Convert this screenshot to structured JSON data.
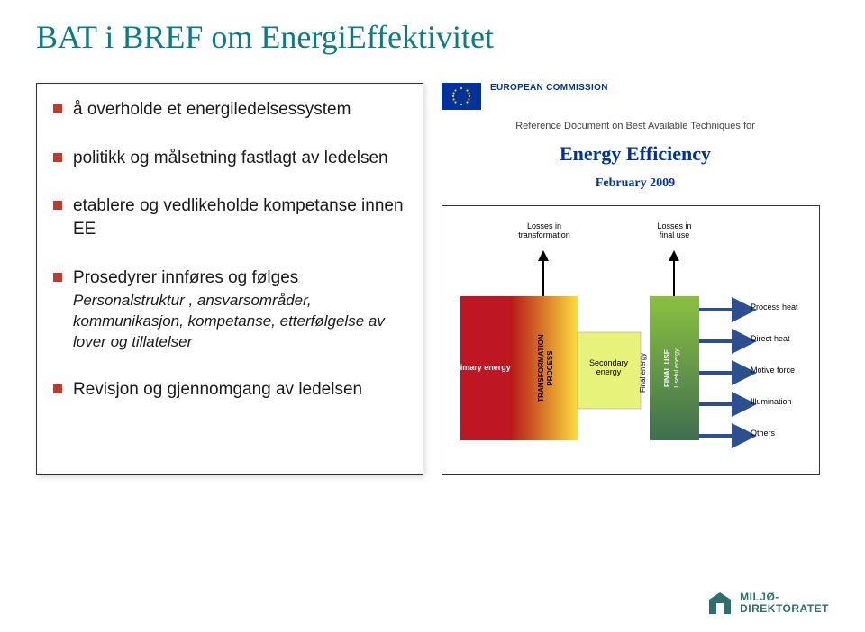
{
  "title": {
    "text": "BAT i BREF om EnergiEffektivitet",
    "color": "#0b7b85"
  },
  "bullets": {
    "markerColor": "#c0392b",
    "textColor": "#1a1a1a",
    "items": [
      {
        "text": "å overholde et energiledelsessystem"
      },
      {
        "text": "politikk og målsetning fastlagt av ledelsen"
      },
      {
        "text": "etablere og vedlikeholde kompetanse innen EE"
      },
      {
        "text": "Prosedyrer innføres og følges"
      },
      {
        "text": "Revisjon og gjennomgang av ledelsen"
      }
    ],
    "subtext": "Personalstruktur , ansvarsområder, kommunikasjon, kompetanse, etterfølgelse av lover og tillatelser"
  },
  "document": {
    "commissionLabel": "EUROPEAN COMMISSION",
    "refLine": "Reference Document on Best Available Techniques for",
    "mainTitle": "Energy Efficiency",
    "mainTitleColor": "#003399",
    "date": "February 2009",
    "dateColor": "#003399"
  },
  "diagram": {
    "labels": {
      "lossesTransformation": "Losses in\ntransformation",
      "lossesFinalUse": "Losses in\nfinal use",
      "primaryEnergy": "Primary energy",
      "transformationProcess": "TRANSFORMATION\nPROCESS",
      "secondaryEnergy": "Secondary\nenergy",
      "finalUse": "FINAL USE\nUseful energy",
      "finalEnergy": "Final energy",
      "outputs": [
        "Process heat",
        "Direct heat",
        "Motive force",
        "Illumination",
        "Others"
      ]
    },
    "colors": {
      "primaryEnergyBox": "#be1622",
      "transformationGradient": [
        "#b51717",
        "#fcdc3b"
      ],
      "secondaryEnergyBox": "#e6f27a",
      "finalUseTop": "#8ac13f",
      "finalUseBottom": "#3f6f4f",
      "outputArrow": "#2b4f8f",
      "lossArrow": "#000000"
    }
  },
  "logo": {
    "name": "MILJØ-\nDIREKTORATET",
    "markColor": "#2f6f6b",
    "textColor": "#2f6f6b"
  }
}
